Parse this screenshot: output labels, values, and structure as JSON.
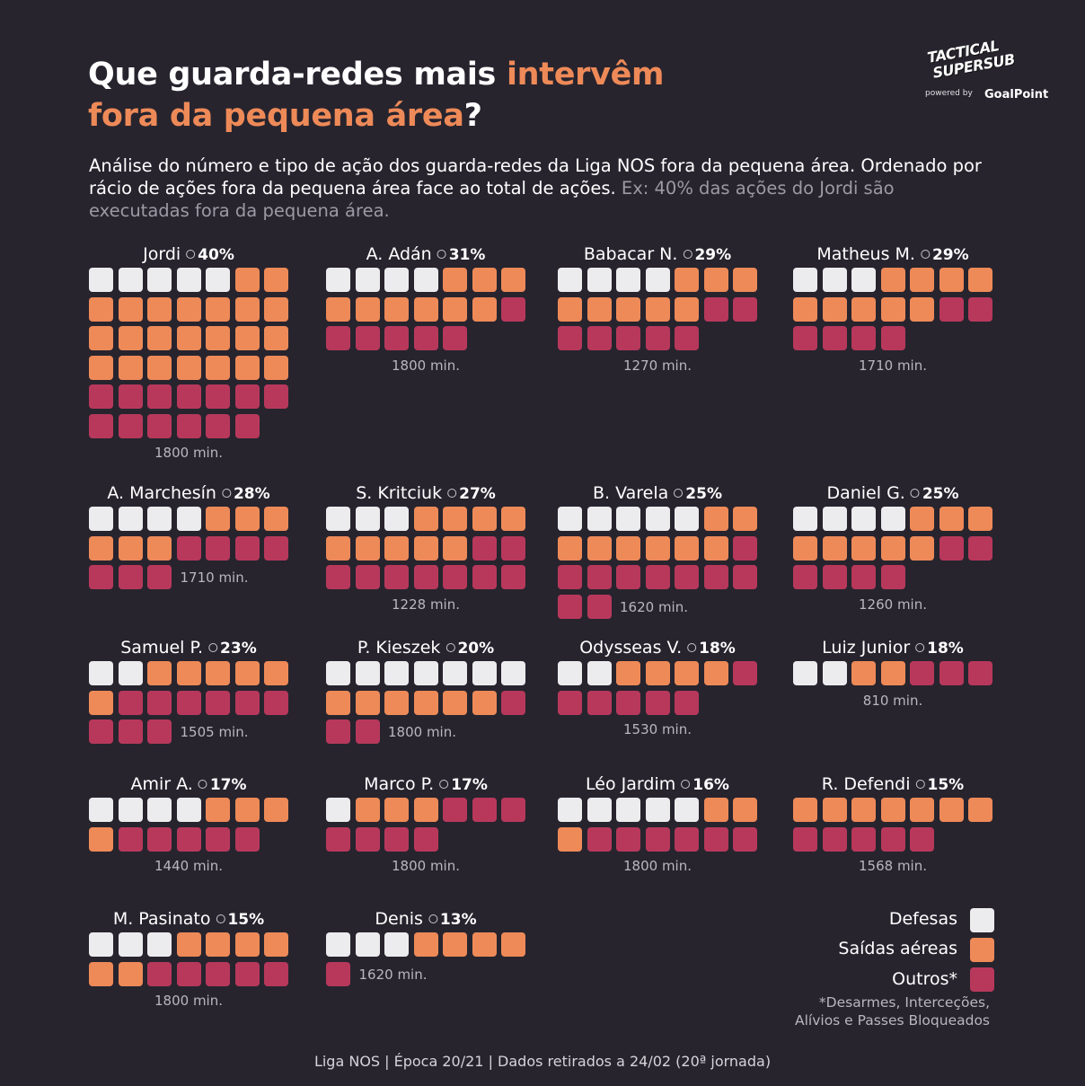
{
  "title": {
    "part1": "Que guarda-redes mais ",
    "accent1": "intervêm",
    "accent2": "fora da pequena área",
    "end": "?"
  },
  "subtitle": {
    "main": "Análise do número e tipo de ação dos guarda-redes da Liga NOS fora da pequena área. Ordenado por rácio de ações fora da pequena área face ao total de ações.",
    "example": "Ex: 40% das ações do Jordi são executadas fora da pequena área."
  },
  "logo": {
    "line1": "TACTICAL",
    "line2": "SUPERSUB",
    "powered": "powered by",
    "partner": "GoalPoint"
  },
  "colors": {
    "background": "#27242e",
    "defesas": "#ececee",
    "saidas": "#ee8a58",
    "outros": "#b8385c",
    "accent": "#ee8a58"
  },
  "chart_data": {
    "type": "waffle",
    "unit": "1 square = 1 action outside the goal area",
    "categories": [
      "Defesas",
      "Saídas aéreas",
      "Outros"
    ],
    "players": [
      {
        "name": "Jordi",
        "pct": "40%",
        "minutes": "1800 min.",
        "defesas": 5,
        "saidas": 23,
        "outros": 13
      },
      {
        "name": "A. Adán",
        "pct": "31%",
        "minutes": "1800 min.",
        "defesas": 4,
        "saidas": 9,
        "outros": 6
      },
      {
        "name": "Babacar N.",
        "pct": "29%",
        "minutes": "1270 min.",
        "defesas": 4,
        "saidas": 8,
        "outros": 7
      },
      {
        "name": "Matheus M.",
        "pct": "29%",
        "minutes": "1710 min.",
        "defesas": 3,
        "saidas": 9,
        "outros": 6
      },
      {
        "name": "A. Marchesín",
        "pct": "28%",
        "minutes": "1710 min.",
        "defesas": 4,
        "saidas": 6,
        "outros": 7
      },
      {
        "name": "S. Kritciuk",
        "pct": "27%",
        "minutes": "1228 min.",
        "defesas": 3,
        "saidas": 9,
        "outros": 9
      },
      {
        "name": "B. Varela",
        "pct": "25%",
        "minutes": "1620 min.",
        "defesas": 5,
        "saidas": 8,
        "outros": 10
      },
      {
        "name": "Daniel G.",
        "pct": "25%",
        "minutes": "1260 min.",
        "defesas": 4,
        "saidas": 8,
        "outros": 6
      },
      {
        "name": "Samuel P.",
        "pct": "23%",
        "minutes": "1505 min.",
        "defesas": 2,
        "saidas": 6,
        "outros": 9
      },
      {
        "name": "P. Kieszek",
        "pct": "20%",
        "minutes": "1800 min.",
        "defesas": 7,
        "saidas": 6,
        "outros": 3
      },
      {
        "name": "Odysseas V.",
        "pct": "18%",
        "minutes": "1530 min.",
        "defesas": 2,
        "saidas": 4,
        "outros": 6
      },
      {
        "name": "Luiz Junior",
        "pct": "18%",
        "minutes": "810 min.",
        "defesas": 2,
        "saidas": 2,
        "outros": 3
      },
      {
        "name": "Amir A.",
        "pct": "17%",
        "minutes": "1440 min.",
        "defesas": 4,
        "saidas": 4,
        "outros": 5
      },
      {
        "name": "Marco P.",
        "pct": "17%",
        "minutes": "1800 min.",
        "defesas": 1,
        "saidas": 3,
        "outros": 7
      },
      {
        "name": "Léo Jardim",
        "pct": "16%",
        "minutes": "1800 min.",
        "defesas": 5,
        "saidas": 3,
        "outros": 6
      },
      {
        "name": "R. Defendi",
        "pct": "15%",
        "minutes": "1568 min.",
        "defesas": 0,
        "saidas": 7,
        "outros": 5
      },
      {
        "name": "M. Pasinato",
        "pct": "15%",
        "minutes": "1800 min.",
        "defesas": 3,
        "saidas": 6,
        "outros": 5
      },
      {
        "name": "Denis",
        "pct": "13%",
        "minutes": "1620 min.",
        "defesas": 3,
        "saidas": 4,
        "outros": 1
      }
    ]
  },
  "legend": {
    "items": [
      {
        "label": "Defesas",
        "color": "#ececee"
      },
      {
        "label": "Saídas aéreas",
        "color": "#ee8a58"
      },
      {
        "label": "Outros*",
        "color": "#b8385c"
      }
    ],
    "note_line1": "*Desarmes, Interceções,",
    "note_line2": "Alívios e Passes Bloqueados"
  },
  "footer": "Liga NOS | Época 20/21 | Dados retirados a 24/02 (20ª jornada)"
}
